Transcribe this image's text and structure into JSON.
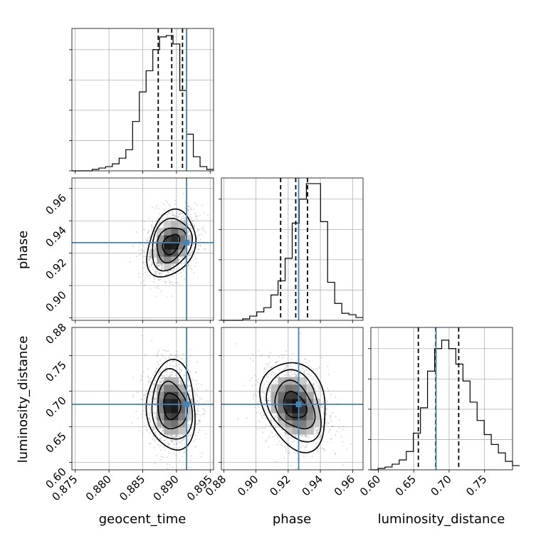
{
  "chart_data": {
    "type": "corner",
    "parameters": [
      "geocent_time",
      "phase",
      "luminosity_distance"
    ],
    "truths": [
      0.8915,
      0.9265,
      0.6815
    ],
    "quantiles": {
      "geocent_time": [
        0.8873,
        0.8893,
        0.8909
      ],
      "phase": [
        0.9153,
        0.9247,
        0.932
      ],
      "luminosity_distance": [
        0.6565,
        0.681,
        0.7135
      ]
    },
    "ranges": {
      "geocent_time": [
        0.8745,
        0.8955
      ],
      "phase": [
        0.8785,
        0.9665
      ],
      "luminosity_distance": [
        0.5895,
        0.7895
      ]
    },
    "ticks": {
      "geocent_time": [
        {
          "v": 0.875,
          "label": "0.875"
        },
        {
          "v": 0.88,
          "label": "0.880"
        },
        {
          "v": 0.885,
          "label": "0.885"
        },
        {
          "v": 0.89,
          "label": "0.890"
        },
        {
          "v": 0.895,
          "label": "0.895"
        }
      ],
      "phase": [
        {
          "v": 0.88,
          "label": "0.88"
        },
        {
          "v": 0.9,
          "label": "0.90"
        },
        {
          "v": 0.92,
          "label": "0.92"
        },
        {
          "v": 0.94,
          "label": "0.94"
        },
        {
          "v": 0.96,
          "label": "0.96"
        }
      ],
      "luminosity_distance": [
        {
          "v": 0.6,
          "label": "0.60"
        },
        {
          "v": 0.65,
          "label": "0.65"
        },
        {
          "v": 0.7,
          "label": "0.70"
        },
        {
          "v": 0.75,
          "label": "0.75"
        }
      ]
    },
    "histograms": {
      "geocent_time": {
        "bins_start": 0.8745,
        "bin_width": 0.001,
        "counts": [
          0,
          0,
          0,
          0.01,
          0.02,
          0.03,
          0.05,
          0.09,
          0.15,
          0.35,
          0.56,
          0.71,
          0.86,
          0.95,
          0.96,
          0.9,
          0.57,
          0.26,
          0.1,
          0.03,
          0.01
        ]
      },
      "phase": {
        "bins_start": 0.8785,
        "bin_width": 0.0044,
        "counts": [
          0,
          0,
          0,
          0.01,
          0.03,
          0.06,
          0.09,
          0.18,
          0.28,
          0.44,
          0.69,
          0.86,
          0.97,
          0.97,
          0.7,
          0.27,
          0.12,
          0.05,
          0.04,
          0.02
        ]
      },
      "luminosity_distance": {
        "bins_start": 0.5895,
        "bin_width": 0.01,
        "counts": [
          0,
          0.01,
          0.02,
          0.04,
          0.07,
          0.13,
          0.26,
          0.44,
          0.7,
          0.86,
          0.92,
          0.86,
          0.75,
          0.63,
          0.48,
          0.35,
          0.25,
          0.18,
          0.12,
          0.06,
          0.03
        ]
      }
    },
    "density_2d": [
      {
        "x": "geocent_time",
        "y": "phase",
        "center": [
          0.8892,
          0.9255
        ],
        "sigma": [
          0.0015,
          0.008
        ],
        "rho": 0.3
      },
      {
        "x": "geocent_time",
        "y": "luminosity_distance",
        "center": [
          0.8893,
          0.679
        ],
        "sigma": [
          0.0015,
          0.024
        ],
        "rho": -0.05
      },
      {
        "x": "phase",
        "y": "luminosity_distance",
        "center": [
          0.924,
          0.68
        ],
        "sigma": [
          0.0085,
          0.024
        ],
        "rho": -0.25
      }
    ],
    "xlabels": [
      "geocent_time",
      "phase",
      "luminosity_distance"
    ],
    "ylabels": [
      "",
      "phase",
      "luminosity_distance"
    ],
    "grid": true
  }
}
